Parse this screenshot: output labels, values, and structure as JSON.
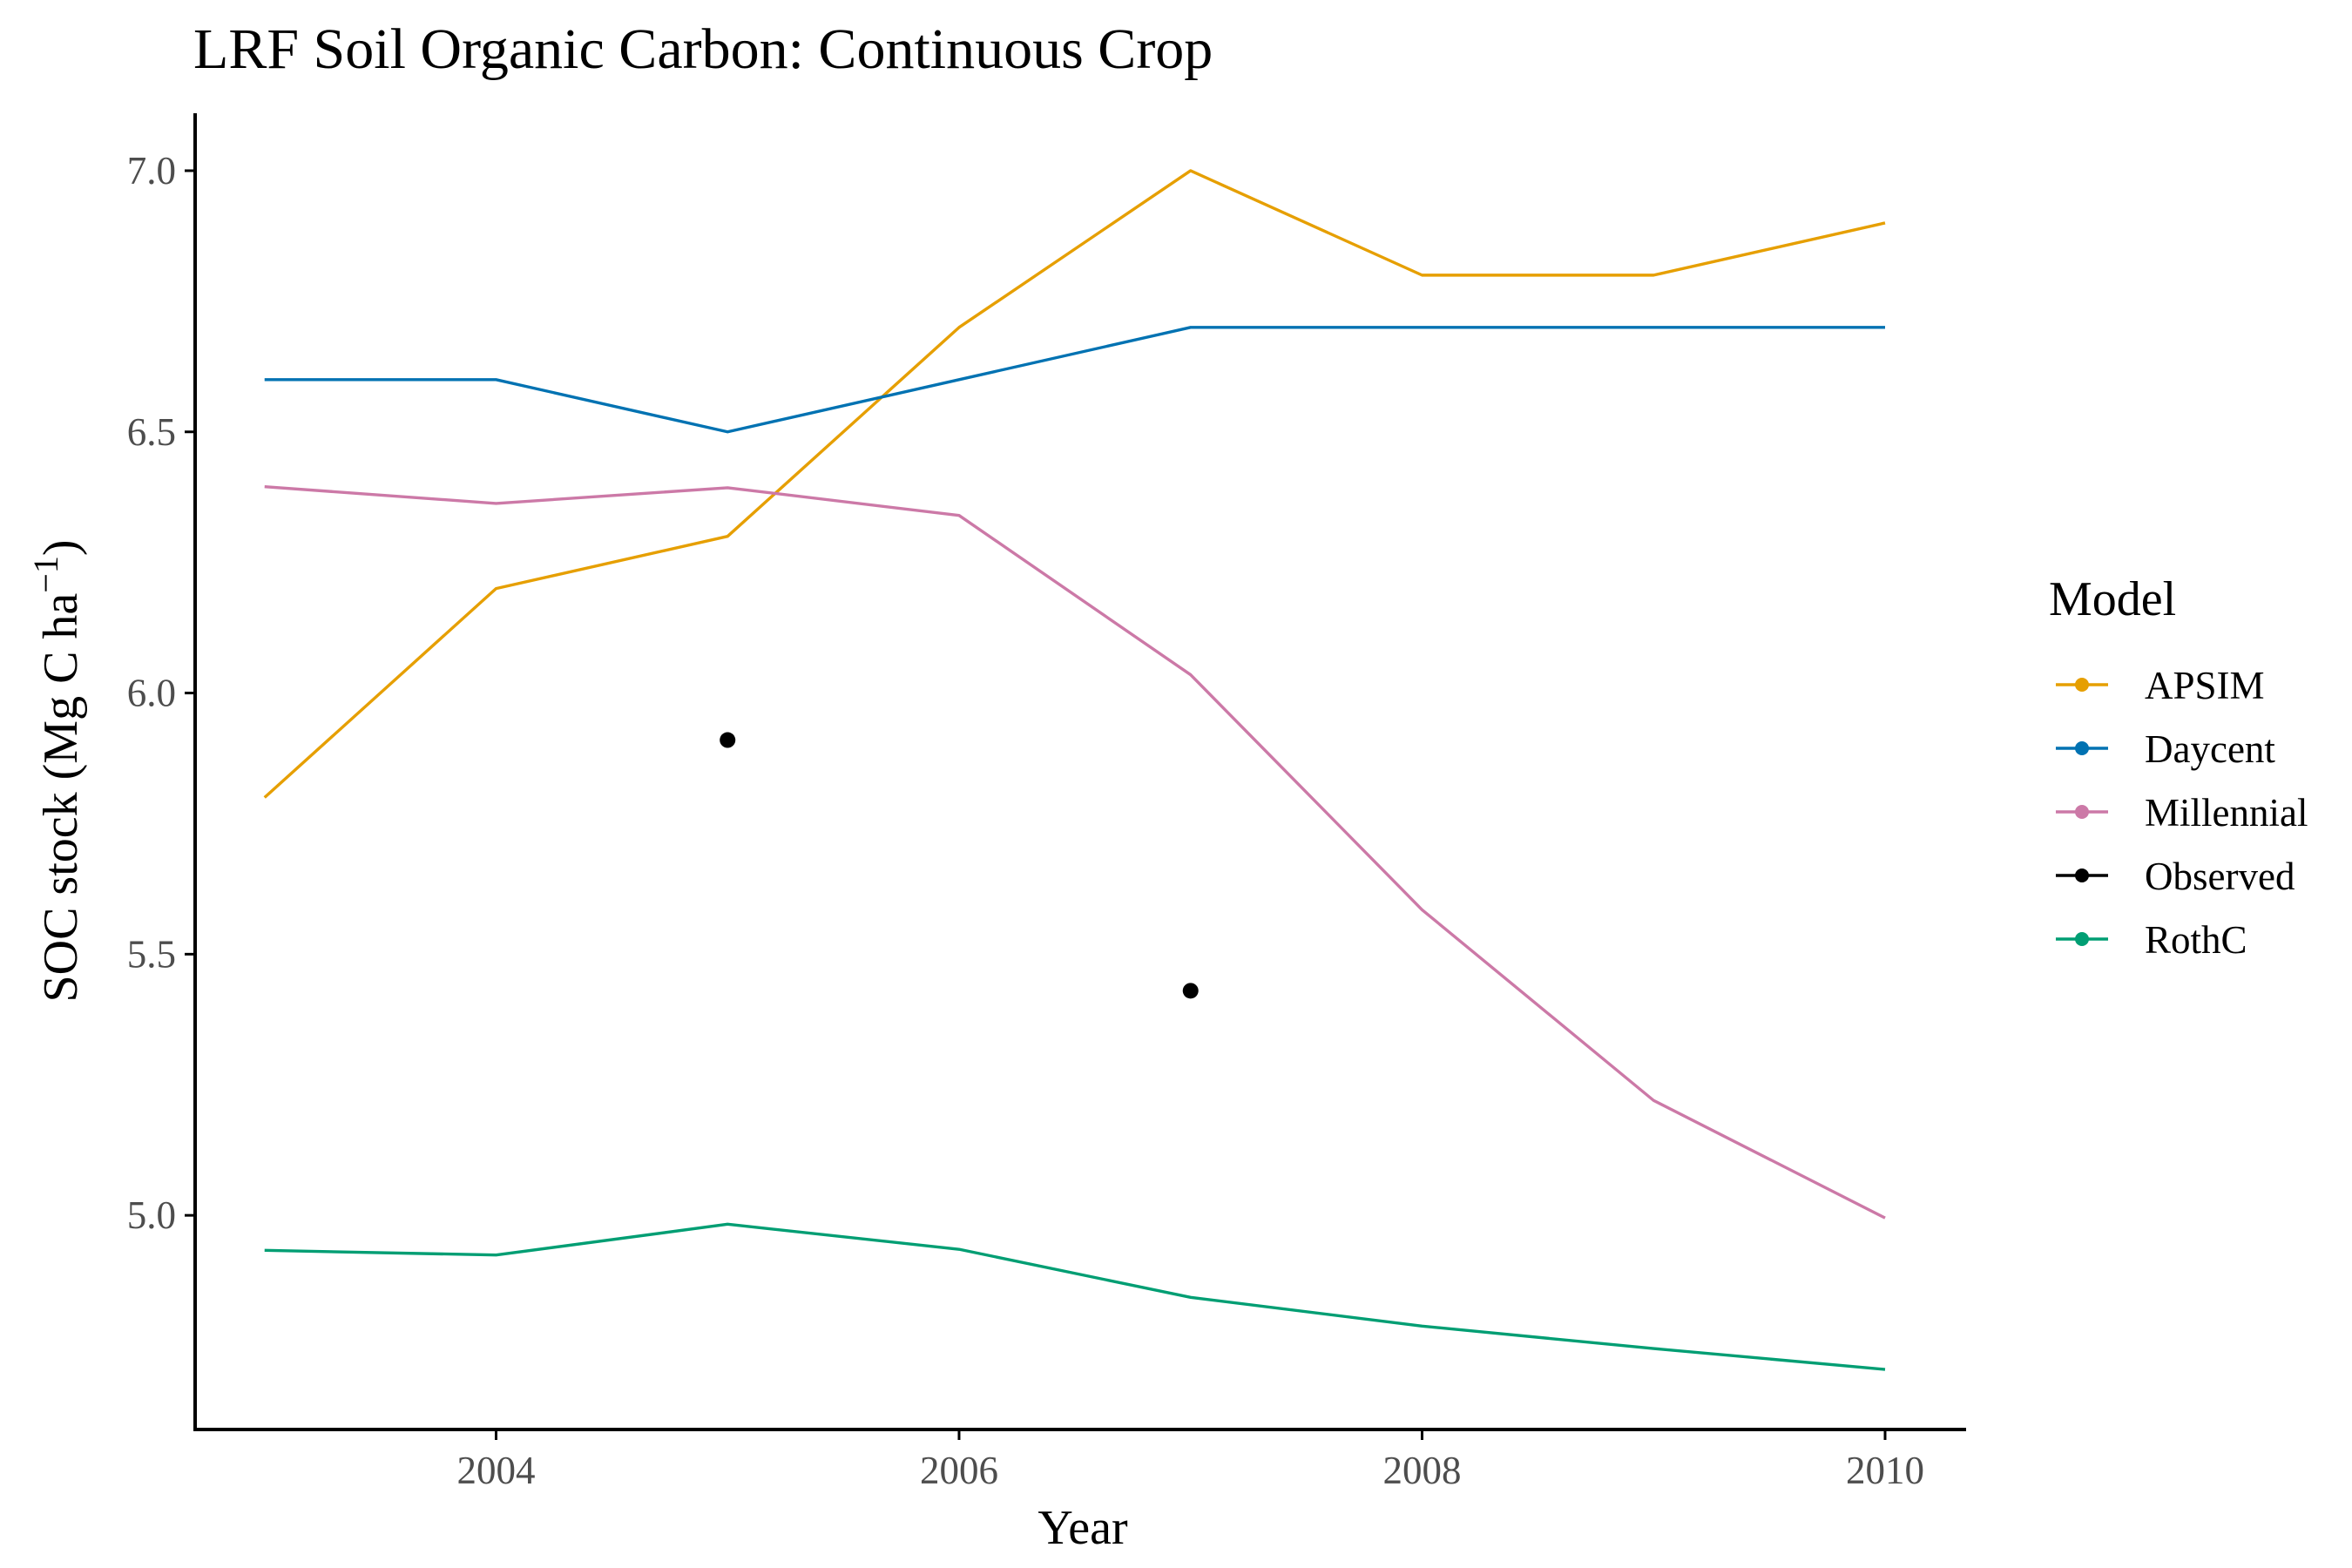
{
  "chart_data": {
    "type": "line",
    "title": "LRF Soil Organic Carbon:  Continuous Crop",
    "xlabel": "Year",
    "ylabel_main": "SOC stock (Mg C ha",
    "ylabel_sup": "−1",
    "ylabel_close": ")",
    "xlim": [
      2002.7,
      2010.35
    ],
    "ylim": [
      4.59,
      7.11
    ],
    "xticks": [
      2004,
      2006,
      2008,
      2010
    ],
    "yticks": [
      5.0,
      5.5,
      6.0,
      6.5,
      7.0
    ],
    "ytick_labels": [
      "5.0",
      "5.5",
      "6.0",
      "6.5",
      "7.0"
    ],
    "grid": false,
    "legend": {
      "title": "Model",
      "position": "right"
    },
    "series": [
      {
        "name": "APSIM",
        "color": "#E69F00",
        "mode": "line",
        "x": [
          2003,
          2004,
          2005,
          2006,
          2007,
          2008,
          2009,
          2010
        ],
        "y": [
          5.8,
          6.2,
          6.3,
          6.7,
          7.0,
          6.8,
          6.8,
          6.9
        ]
      },
      {
        "name": "Daycent",
        "color": "#0072B2",
        "mode": "line",
        "x": [
          2003,
          2004,
          2005,
          2006,
          2007,
          2008,
          2009,
          2010
        ],
        "y": [
          6.6,
          6.6,
          6.5,
          6.6,
          6.7,
          6.7,
          6.7,
          6.7
        ]
      },
      {
        "name": "Millennial",
        "color": "#CC79A7",
        "mode": "line",
        "x": [
          2003,
          2004,
          2005,
          2006,
          2007,
          2008,
          2009,
          2010
        ],
        "y": [
          6.395,
          6.363,
          6.393,
          6.34,
          6.035,
          5.585,
          5.22,
          4.995
        ]
      },
      {
        "name": "Observed",
        "color": "#000000",
        "mode": "points",
        "x": [
          2005,
          2007
        ],
        "y": [
          5.91,
          5.43
        ]
      },
      {
        "name": "RothC",
        "color": "#009E73",
        "mode": "line",
        "x": [
          2003,
          2004,
          2005,
          2006,
          2007,
          2008,
          2009,
          2010
        ],
        "y": [
          4.933,
          4.924,
          4.983,
          4.935,
          4.843,
          4.788,
          4.745,
          4.705
        ]
      }
    ]
  }
}
